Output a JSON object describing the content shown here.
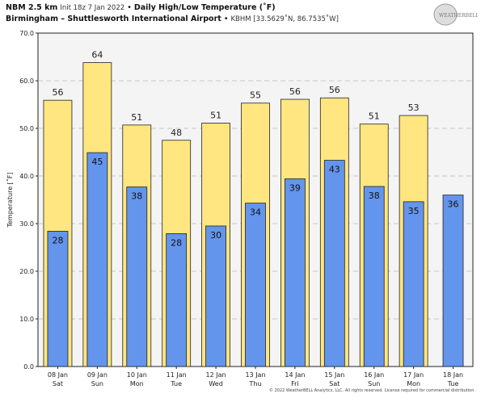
{
  "header": {
    "model": "NBM 2.5 km",
    "init": "Init 18z 7 Jan 2022",
    "sep": "•",
    "title": "Daily High/Low Temperature (˚F)",
    "station": "Birmingham – Shuttlesworth International Airport",
    "station_info": "KBHM [33.5629˚N, 86.7535˚W]"
  },
  "logo_text": "WeatherBELL",
  "copyright": "© 2022 WeatherBELL Analytics, LLC. All rights reserved. License required for commercial distribution.",
  "colors": {
    "high": "#ffe680",
    "low": "#6495ed",
    "plot_bg": "#f4f4f4"
  },
  "chart_data": {
    "type": "bar",
    "ylabel": "Temperature [˚F]",
    "ylim": [
      0,
      70
    ],
    "yticks": [
      "0.0",
      "10.0",
      "20.0",
      "30.0",
      "40.0",
      "50.0",
      "60.0",
      "70.0"
    ],
    "grid": true,
    "categories": [
      [
        "08 Jan",
        "Sat"
      ],
      [
        "09 Jan",
        "Sun"
      ],
      [
        "10 Jan",
        "Mon"
      ],
      [
        "11 Jan",
        "Tue"
      ],
      [
        "12 Jan",
        "Wed"
      ],
      [
        "13 Jan",
        "Thu"
      ],
      [
        "14 Jan",
        "Fri"
      ],
      [
        "15 Jan",
        "Sat"
      ],
      [
        "16 Jan",
        "Sun"
      ],
      [
        "17 Jan",
        "Mon"
      ],
      [
        "18 Jan",
        "Tue"
      ]
    ],
    "series": [
      {
        "key": "high",
        "values": [
          56,
          64,
          51,
          48,
          51,
          55,
          56,
          56,
          51,
          53,
          null
        ],
        "plot_values": [
          55.9,
          63.8,
          50.7,
          47.5,
          51.1,
          55.3,
          56.1,
          56.4,
          50.9,
          52.7,
          null
        ]
      },
      {
        "key": "low",
        "values": [
          28,
          45,
          38,
          28,
          30,
          34,
          39,
          43,
          38,
          35,
          36
        ],
        "plot_values": [
          28.4,
          44.9,
          37.7,
          27.9,
          29.5,
          34.3,
          39.4,
          43.3,
          37.8,
          34.6,
          36.0
        ]
      }
    ]
  }
}
